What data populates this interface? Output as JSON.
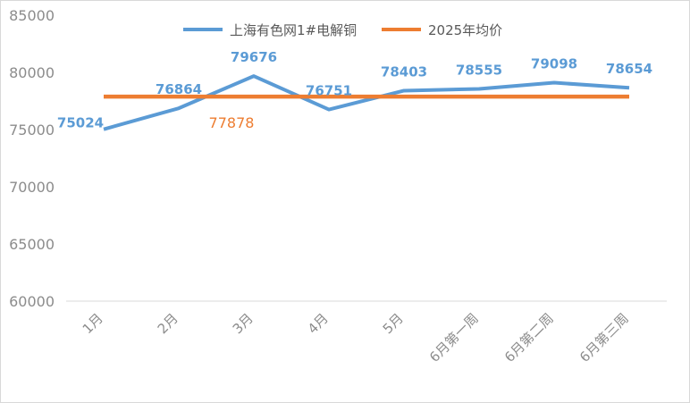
{
  "chart_data": {
    "type": "line",
    "title": "",
    "xlabel": "",
    "ylabel": "",
    "ylim": [
      60000,
      85000
    ],
    "y_ticks": [
      60000,
      65000,
      70000,
      75000,
      80000,
      85000
    ],
    "categories": [
      "1月",
      "2月",
      "3月",
      "4月",
      "5月",
      "6月第一周",
      "6月第二周",
      "6月第三周"
    ],
    "legend_position": "top",
    "grid": false,
    "series": [
      {
        "name": "上海有色网1#电解铜",
        "color": "#5b9bd5",
        "values": [
          75024,
          76864,
          79676,
          76751,
          78403,
          78555,
          79098,
          78654
        ],
        "data_labels": [
          "75024",
          "76864",
          "79676",
          "76751",
          "78403",
          "78555",
          "79098",
          "78654"
        ]
      },
      {
        "name": "2025年均价",
        "color": "#ed7d31",
        "values": [
          77878,
          77878,
          77878,
          77878,
          77878,
          77878,
          77878,
          77878
        ],
        "data_labels": [
          "77878"
        ]
      }
    ]
  }
}
